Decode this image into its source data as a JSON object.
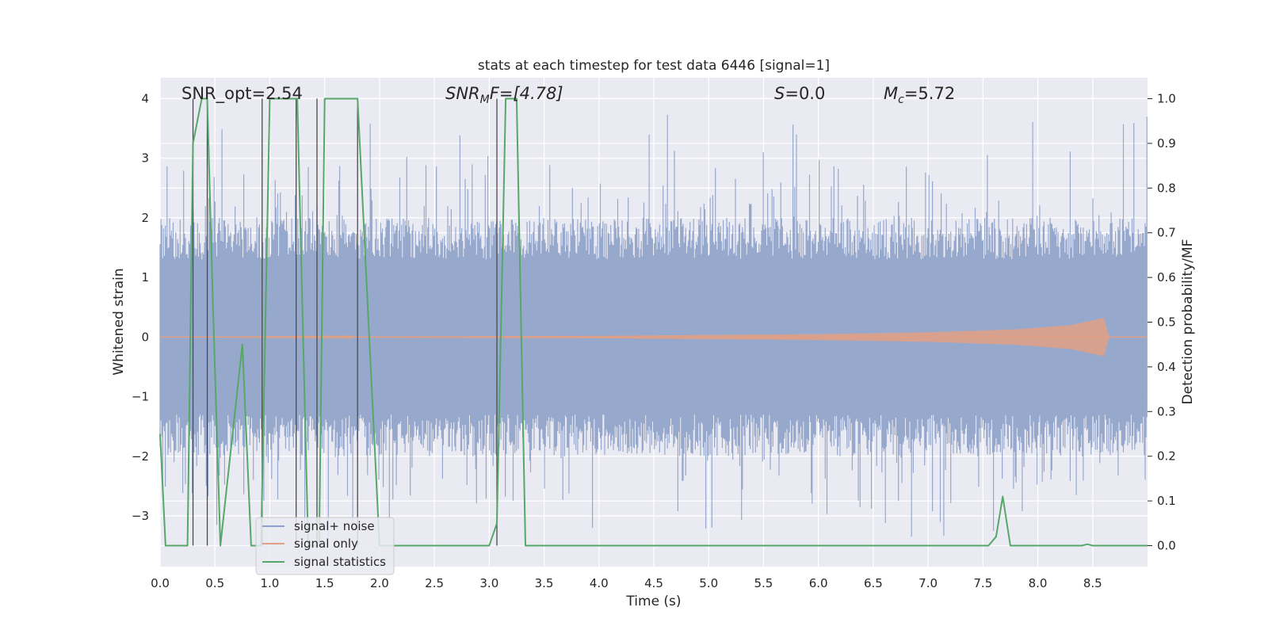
{
  "chart_data": {
    "type": "line",
    "title": "stats at each timestep for test data 6446 [signal=1]",
    "xlabel": "Time (s)",
    "ylabel": "Whitened strain",
    "ylabel_right": "Detection probability/MF",
    "xlim": [
      0,
      9.0
    ],
    "ylim": [
      -3.85,
      4.35
    ],
    "ylim_right": [
      -0.047,
      1.047
    ],
    "x_ticks": [
      0.0,
      0.5,
      1.0,
      1.5,
      2.0,
      2.5,
      3.0,
      3.5,
      4.0,
      4.5,
      5.0,
      5.5,
      6.0,
      6.5,
      7.0,
      7.5,
      8.0,
      8.5
    ],
    "x_tick_labels": [
      "0.0",
      "0.5",
      "1.0",
      "1.5",
      "2.0",
      "2.5",
      "3.0",
      "3.5",
      "4.0",
      "4.5",
      "5.0",
      "5.5",
      "6.0",
      "6.5",
      "7.0",
      "7.5",
      "8.0",
      "8.5"
    ],
    "y_ticks": [
      4,
      3,
      2,
      1,
      0,
      -1,
      -2,
      -3
    ],
    "y_tick_labels": [
      "4",
      "3",
      "2",
      "1",
      "0",
      "−1",
      "−2",
      "−3"
    ],
    "y_right_ticks": [
      1.0,
      0.9,
      0.8,
      0.7,
      0.6,
      0.5,
      0.4,
      0.3,
      0.2,
      0.1,
      0.0
    ],
    "y_right_tick_labels": [
      "1.0",
      "0.9",
      "0.8",
      "0.7",
      "0.6",
      "0.5",
      "0.4",
      "0.3",
      "0.2",
      "0.1",
      "0.0"
    ],
    "annotations": {
      "snr_opt": "SNR_opt=2.54",
      "snr_mf_main": "SNR",
      "snr_mf_sub": "M",
      "snr_mf_rest": "F=[4.78]",
      "s_var": "S",
      "s_rest": "=0.0",
      "mc_var": "M",
      "mc_sub": "c",
      "mc_rest": "=5.72"
    },
    "legend": {
      "location": "lower-left",
      "entries": [
        {
          "label": "signal+ noise",
          "color": "#8da0cb"
        },
        {
          "label": "signal only",
          "color": "#e0a084"
        },
        {
          "label": "signal statistics",
          "color": "#55a868"
        }
      ]
    },
    "series": [
      {
        "name": "signal+ noise",
        "color": "#97a8cd",
        "style": "band",
        "t_range": [
          0,
          9.0
        ],
        "typical_range": [
          -1.2,
          1.2
        ],
        "peak_range": [
          -3.35,
          3.75
        ]
      },
      {
        "name": "signal only",
        "color": "#e0a084",
        "style": "chirp",
        "t_range": [
          0,
          8.65
        ],
        "envelope": {
          "t": [
            0,
            4.0,
            6.0,
            7.0,
            7.8,
            8.3,
            8.6,
            8.65
          ],
          "amp": [
            0.0,
            0.02,
            0.05,
            0.08,
            0.13,
            0.2,
            0.32,
            0.0
          ]
        }
      },
      {
        "name": "signal statistics",
        "color": "#55a868",
        "axis": "right",
        "x": [
          0,
          0.05,
          0.25,
          0.3,
          0.38,
          0.43,
          0.48,
          0.55,
          0.75,
          0.83,
          0.92,
          1.0,
          1.25,
          1.35,
          1.45,
          1.5,
          1.8,
          1.9,
          2.0,
          2.1,
          3.0,
          3.07,
          3.15,
          3.25,
          3.33,
          3.4,
          7.55,
          7.62,
          7.68,
          7.75,
          8.4,
          8.45,
          8.5,
          9.0
        ],
        "y": [
          0.25,
          0.0,
          0.0,
          0.9,
          1.0,
          1.0,
          0.55,
          0.0,
          0.45,
          0.0,
          0.0,
          1.0,
          1.0,
          0.0,
          0.0,
          1.0,
          1.0,
          0.5,
          0.0,
          0.0,
          0.0,
          0.05,
          1.0,
          1.0,
          0.0,
          0.0,
          0.0,
          0.02,
          0.11,
          0.0,
          0.0,
          0.003,
          0.0,
          0.0
        ]
      }
    ],
    "vertical_markers": {
      "color": "#4a4a4a",
      "x": [
        0.3,
        0.43,
        0.93,
        1.24,
        1.43,
        1.8,
        3.07
      ]
    }
  }
}
